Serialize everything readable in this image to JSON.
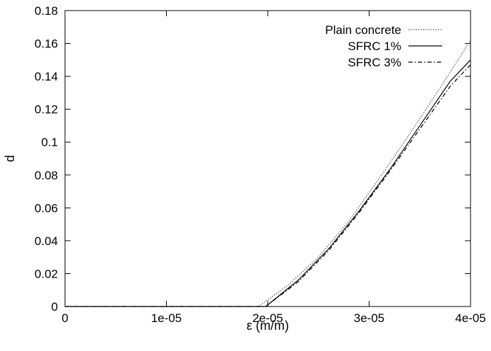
{
  "chart_data": {
    "type": "line",
    "title": "",
    "xlabel": "ε (m/m)",
    "ylabel": "d",
    "xlim": [
      0,
      4e-05
    ],
    "ylim": [
      0,
      0.18
    ],
    "x_ticks": [
      "0",
      "1e-05",
      "2e-05",
      "3e-05",
      "4e-05"
    ],
    "y_ticks": [
      "0",
      "0.02",
      "0.04",
      "0.06",
      "0.08",
      "0.1",
      "0.12",
      "0.14",
      "0.16",
      "0.18"
    ],
    "grid": false,
    "legend_position": "top-right",
    "series": [
      {
        "name": "Plain concrete",
        "style": "dotted",
        "color": "#555555",
        "x": [
          0,
          1.9e-05,
          1.93e-05,
          2.2e-05,
          2.5e-05,
          2.8e-05,
          3.1e-05,
          3.4e-05,
          3.7e-05,
          4e-05
        ],
        "y": [
          0,
          0,
          0.001,
          0.013,
          0.03,
          0.052,
          0.078,
          0.105,
          0.133,
          0.162
        ]
      },
      {
        "name": "SFRC 1%",
        "style": "solid",
        "color": "#000000",
        "x": [
          0,
          1.98e-05,
          2e-05,
          2.3e-05,
          2.6e-05,
          2.9e-05,
          3.2e-05,
          3.5e-05,
          3.8e-05,
          4e-05
        ],
        "y": [
          0,
          0,
          0.001,
          0.016,
          0.035,
          0.058,
          0.083,
          0.11,
          0.137,
          0.15
        ]
      },
      {
        "name": "SFRC 3%",
        "style": "dash-dot",
        "color": "#000000",
        "x": [
          0,
          1.98e-05,
          2e-05,
          2.3e-05,
          2.6e-05,
          2.9e-05,
          3.2e-05,
          3.5e-05,
          3.8e-05,
          4e-05
        ],
        "y": [
          0,
          0,
          0.001,
          0.015,
          0.034,
          0.057,
          0.082,
          0.108,
          0.134,
          0.147
        ]
      }
    ]
  }
}
